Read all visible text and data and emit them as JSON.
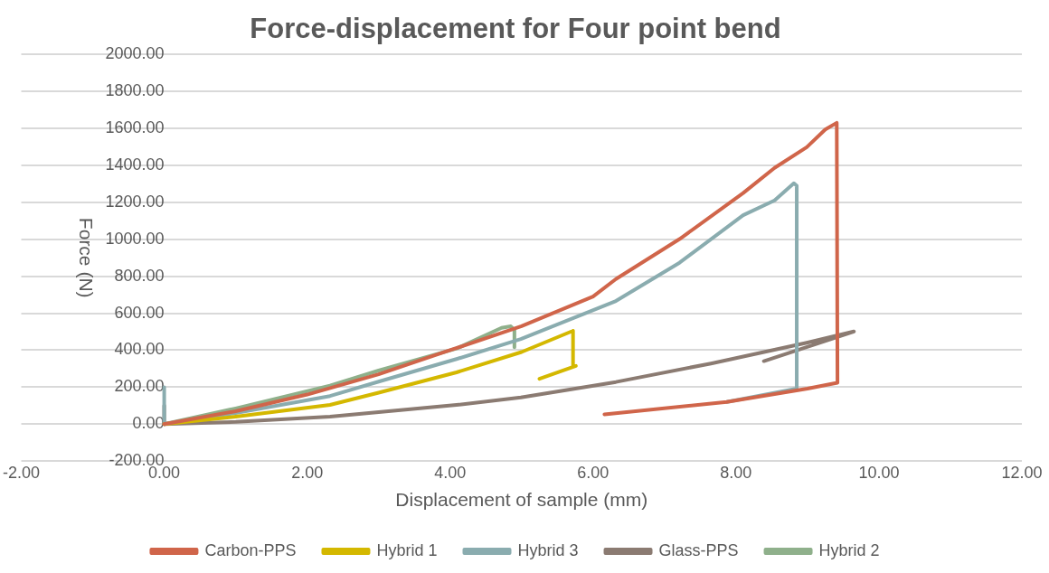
{
  "chart_data": {
    "type": "line",
    "title": "Force-displacement for Four point bend",
    "xlabel": "Displacement of sample (mm)",
    "ylabel": "Force (N)",
    "xlim": [
      -2,
      12
    ],
    "xticks": [
      {
        "value": -2,
        "label": "-2.00"
      },
      {
        "value": 0,
        "label": "0.00"
      },
      {
        "value": 2,
        "label": "2.00"
      },
      {
        "value": 4,
        "label": "4.00"
      },
      {
        "value": 6,
        "label": "6.00"
      },
      {
        "value": 8,
        "label": "8.00"
      },
      {
        "value": 10,
        "label": "10.00"
      },
      {
        "value": 12,
        "label": "12.00"
      }
    ],
    "ylim": [
      -200,
      2000
    ],
    "yticks": [
      {
        "value": -200,
        "label": "-200.00"
      },
      {
        "value": 0,
        "label": "0.00"
      },
      {
        "value": 200,
        "label": "200.00"
      },
      {
        "value": 400,
        "label": "400.00"
      },
      {
        "value": 600,
        "label": "600.00"
      },
      {
        "value": 800,
        "label": "800.00"
      },
      {
        "value": 1000,
        "label": "1000.00"
      },
      {
        "value": 1200,
        "label": "1200.00"
      },
      {
        "value": 1400,
        "label": "1400.00"
      },
      {
        "value": 1600,
        "label": "1600.00"
      },
      {
        "value": 1800,
        "label": "1800.00"
      },
      {
        "value": 2000,
        "label": "2000.00"
      }
    ],
    "grid": "y",
    "legend": "bottom",
    "marker": "none",
    "line_style": "solid",
    "series": [
      {
        "name": "Carbon-PPS",
        "color": "#d0654a",
        "x": [
          0,
          1,
          2,
          3,
          4,
          5,
          6,
          6.32,
          7.21,
          8.1,
          8.54,
          8.99,
          9.25,
          9.41,
          9.42,
          9,
          7.87,
          6.16
        ],
        "values": [
          0,
          70,
          160,
          270,
          400,
          530,
          690,
          785,
          1001,
          1250,
          1386,
          1498,
          1594,
          1630,
          224,
          192,
          120,
          53
        ]
      },
      {
        "name": "Hybrid 1",
        "color": "#d4b800",
        "x": [
          0,
          1,
          2.32,
          3,
          4.09,
          5,
          5.72,
          5.72,
          5.76,
          5.25
        ],
        "values": [
          0,
          40,
          104,
          170,
          280,
          390,
          505,
          312,
          315,
          245
        ]
      },
      {
        "name": "Hybrid 3",
        "color": "#8aacaf",
        "x": [
          0,
          0,
          1,
          2.32,
          3,
          4.09,
          4.99,
          6.32,
          7.21,
          8.1,
          8.54,
          8.81,
          8.85,
          8.85,
          7.87
        ],
        "values": [
          200,
          0,
          60,
          152,
          230,
          352,
          460,
          666,
          873,
          1130,
          1210,
          1303,
          1290,
          192,
          120
        ]
      },
      {
        "name": "Glass-PPS",
        "color": "#8b7b72",
        "x": [
          0,
          0,
          1,
          2.32,
          4.09,
          4.99,
          6.32,
          7.65,
          8.99,
          9.65,
          8.39
        ],
        "values": [
          100,
          0,
          12,
          40,
          104,
          144,
          228,
          328,
          440,
          501,
          341
        ]
      },
      {
        "name": "Hybrid 2",
        "color": "#8fb08b",
        "x": [
          0,
          1,
          2.32,
          3,
          4.09,
          4.72,
          4.85,
          4.9,
          4.9
        ],
        "values": [
          0,
          85,
          208,
          290,
          409,
          521,
          529,
          510,
          416
        ]
      }
    ]
  }
}
